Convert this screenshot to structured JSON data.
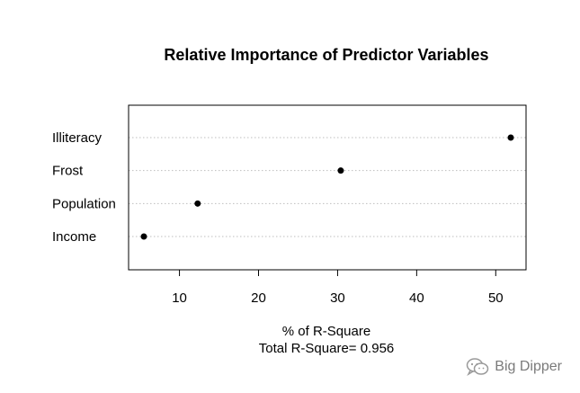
{
  "chart_data": {
    "type": "scatter",
    "title": "Relative Importance of Predictor Variables",
    "xlabel": "% of R-Square",
    "subtitle": "Total R-Square= 0.956",
    "ylabel": "",
    "categories": [
      "Illiteracy",
      "Frost",
      "Population",
      "Income"
    ],
    "values": [
      51.9,
      30.4,
      12.3,
      5.5
    ],
    "xlim": [
      5.5,
      51.9
    ],
    "x_ticks": [
      10,
      20,
      30,
      40,
      50
    ],
    "grid": "horizontal dotted lines at each category",
    "marker_color": "#000000",
    "grid_color": "#bebebe"
  },
  "watermark": {
    "text": "Big Dipper",
    "icon": "wechat-icon"
  }
}
